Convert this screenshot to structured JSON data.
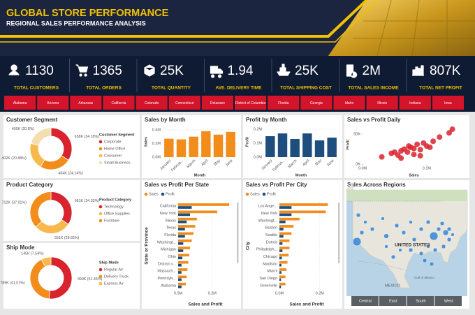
{
  "header": {
    "title": "GLOBAL STORE PERFORMANCE",
    "subtitle": "REGIONAL SALES PERFORMANCE ANALYSIS"
  },
  "kpis": [
    {
      "value": "1130",
      "label": "TOTAL CUSTOMERS"
    },
    {
      "value": "1365",
      "label": "TOTAL ORDERS"
    },
    {
      "value": "25K",
      "label": "TOTAL QUANTITY"
    },
    {
      "value": "1.94",
      "label": "AVE. DELIVERY TIME"
    },
    {
      "value": "25K",
      "label": "TOTAL SHIPPING COST"
    },
    {
      "value": "2M",
      "label": "TOTAL SALES INCOME"
    },
    {
      "value": "807K",
      "label": "TOTAL NET PROFIT"
    }
  ],
  "filters": [
    "Alabama",
    "Arizona",
    "Arkansas",
    "California",
    "Colorado",
    "Connecticut",
    "Delaware",
    "District of Columbia",
    "Florida",
    "Georgia",
    "Idaho",
    "Illinois",
    "Indiana",
    "Iowa"
  ],
  "chart_data": [
    {
      "type": "pie",
      "title": "Customer Segment",
      "legend_title": "Customer Segment",
      "categories": [
        "Corporate",
        "Home Office",
        "Consumer",
        "Small Business"
      ],
      "values": [
        34.18,
        24.14,
        20.88,
        20.8
      ],
      "value_labels": [
        "658K (34.18%)",
        "464K (24.14%)",
        "402K (20.88%)",
        "400K (20.8%)"
      ],
      "colors": [
        "#d9232e",
        "#f28c1a",
        "#f7b84d",
        "#f3deb0"
      ]
    },
    {
      "type": "bar",
      "title": "Sales by Month",
      "xlabel": "Month",
      "ylabel": "Sales",
      "categories": [
        "January",
        "Februa...",
        "March",
        "April",
        "May",
        "June"
      ],
      "values": [
        0.27,
        0.26,
        0.3,
        0.38,
        0.33,
        0.37
      ],
      "color": "#f28c1a",
      "ylim": [
        0,
        0.45
      ],
      "yticks": [
        {
          "value": 0,
          "label": "0.0M"
        },
        {
          "value": 0.2,
          "label": "0.2M"
        },
        {
          "value": 0.4,
          "label": "0.4M"
        }
      ],
      "grid": true
    },
    {
      "type": "bar",
      "title": "Profit by Month",
      "xlabel": "Month",
      "ylabel": "Profit",
      "categories": [
        "January",
        "Februa...",
        "March",
        "April",
        "May",
        "June"
      ],
      "values": [
        0.15,
        0.17,
        0.13,
        0.17,
        0.12,
        0.14
      ],
      "color": "#1d4e7e",
      "ylim": [
        0,
        0.22
      ],
      "yticks": [
        {
          "value": 0,
          "label": "0.0M"
        },
        {
          "value": 0.1,
          "label": "0.1M"
        },
        {
          "value": 0.2,
          "label": "0.2M"
        }
      ],
      "grid": true
    },
    {
      "type": "scatter",
      "title": "Sales vs Profit Daily",
      "xlabel": "Sales",
      "ylabel": "Profit",
      "x": [
        0.03,
        0.045,
        0.05,
        0.055,
        0.06,
        0.065,
        0.07,
        0.072,
        0.075,
        0.08,
        0.085,
        0.09,
        0.095,
        0.1,
        0.105,
        0.11,
        0.12,
        0.135,
        0.14,
        0.06,
        0.08,
        0.09
      ],
      "values": [
        12,
        18,
        20,
        15,
        22,
        25,
        20,
        30,
        28,
        26,
        33,
        24,
        35,
        30,
        28,
        38,
        45,
        52,
        58,
        10,
        16,
        14
      ],
      "color": "#d9232e",
      "xlim": [
        0,
        0.16
      ],
      "xticks": [
        {
          "value": 0,
          "label": "0.0M"
        },
        {
          "value": 0.1,
          "label": "0.1M"
        }
      ],
      "ylim": [
        0,
        65
      ],
      "yticks": [
        {
          "value": 0,
          "label": "0K"
        },
        {
          "value": 50,
          "label": "50K"
        }
      ]
    },
    {
      "type": "pie",
      "title": "Product Category",
      "legend_title": "Product Category",
      "categories": [
        "Technology",
        "Office Supplies",
        "Furniture"
      ],
      "values": [
        34.33,
        28.65,
        37.01
      ],
      "value_labels": [
        "661K (34.33%)",
        "551K (28.65%)",
        "712K (37.01%)"
      ],
      "colors": [
        "#d9232e",
        "#f7b84d",
        "#f28c1a"
      ]
    },
    {
      "type": "hbar",
      "title": "Sales vs Profit Per State",
      "xlabel": "Sales and Profit",
      "ylabel": "State or Province",
      "categories": [
        "California",
        "New York",
        "Illinois",
        "Texas",
        "Florida",
        "Washingt...",
        "Michigan",
        "Ohio",
        "District o...",
        "Massach...",
        "Pennsylv...",
        "Alabama"
      ],
      "series": [
        {
          "name": "Sales",
          "color": "#f28c1a",
          "values": [
            0.3,
            0.23,
            0.11,
            0.1,
            0.09,
            0.08,
            0.07,
            0.065,
            0.06,
            0.055,
            0.05,
            0.045
          ]
        },
        {
          "name": "Profit",
          "color": "#1d4e7e",
          "values": [
            0.08,
            0.07,
            0.05,
            0.04,
            0.04,
            0.03,
            0.03,
            0.025,
            0.02,
            0.02,
            0.02,
            0.02
          ]
        }
      ],
      "xlim": [
        0,
        0.32
      ],
      "xticks": [
        {
          "value": 0,
          "label": "0.0M"
        },
        {
          "value": 0.2,
          "label": "0.2M"
        }
      ],
      "grid": true
    },
    {
      "type": "hbar",
      "title": "Sales vs Profit Per City",
      "xlabel": "Sales and Profit",
      "ylabel": "City",
      "categories": [
        "Los Ange...",
        "New York",
        "Washingt...",
        "Boston",
        "Seattle",
        "Detroit",
        "Philadelph...",
        "Chicago",
        "Madison",
        "Miami",
        "San Diego",
        "Greenville"
      ],
      "series": [
        {
          "name": "Sales",
          "color": "#f28c1a",
          "values": [
            0.24,
            0.23,
            0.1,
            0.07,
            0.06,
            0.05,
            0.05,
            0.045,
            0.04,
            0.035,
            0.03,
            0.03
          ]
        },
        {
          "name": "Profit",
          "color": "#1d4e7e",
          "values": [
            0.06,
            0.06,
            0.03,
            0.02,
            0.02,
            0.015,
            0.015,
            0.012,
            0.01,
            0.01,
            0.008,
            0.008
          ]
        }
      ],
      "xlim": [
        0,
        0.27
      ],
      "xticks": [
        {
          "value": 0,
          "label": "0.0M"
        },
        {
          "value": 0.2,
          "label": "0.2M"
        }
      ],
      "grid": true
    },
    {
      "type": "pie",
      "title": "Ship Mode",
      "legend_title": "Ship Mode",
      "categories": [
        "Regular Air",
        "Delivery Truck",
        "Express Air"
      ],
      "values": [
        51.45,
        41.01,
        7.54
      ],
      "value_labels": [
        "990K (51.45%)",
        "789K (41.01%)",
        "145K (7.54%)"
      ],
      "colors": [
        "#d9232e",
        "#f28c1a",
        "#f7b84d"
      ]
    }
  ],
  "map": {
    "title": "Sales Across Regions",
    "country": "UNITED STATES",
    "neighbor": "MEXICO",
    "sea": "Gulf of Mexico",
    "buttons": [
      "Central",
      "East",
      "South",
      "West"
    ]
  }
}
